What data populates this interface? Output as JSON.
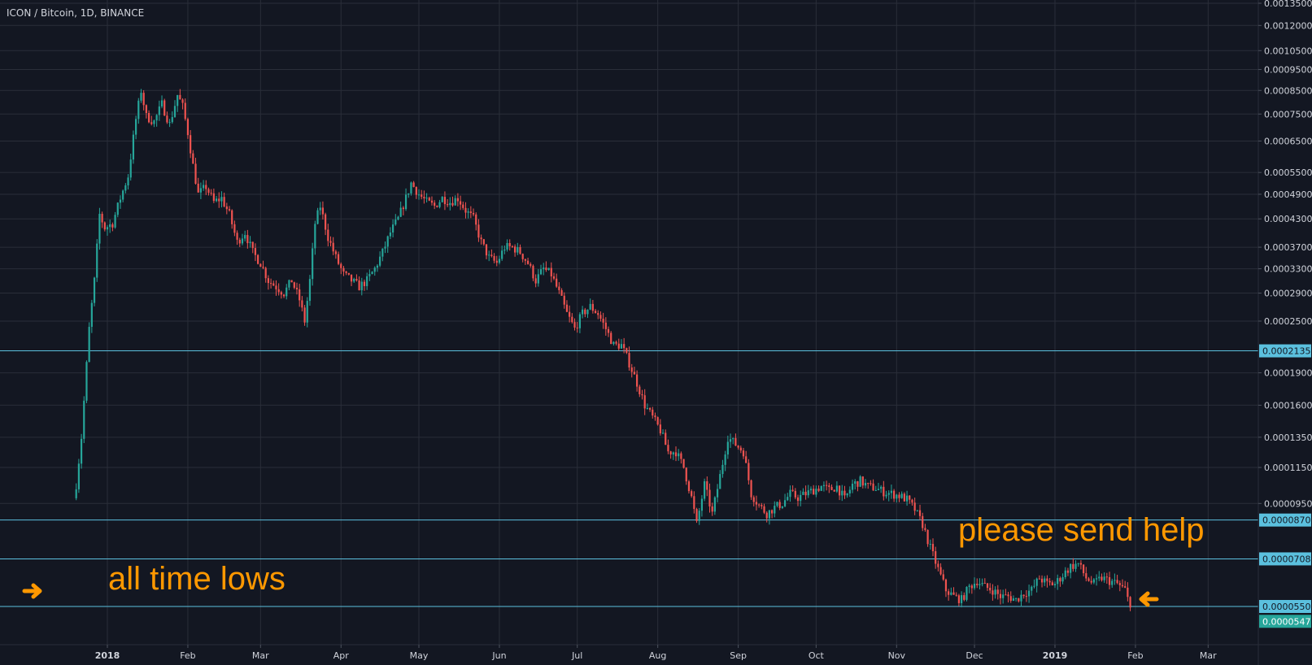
{
  "header": {
    "title": "ICON / Bitcoin, 1D, BINANCE"
  },
  "annotations": {
    "left_text": "all time lows",
    "right_text": "please send help",
    "arrow_color": "#ff9800"
  },
  "colors": {
    "background": "#131722",
    "grid": "#2a2e39",
    "up": "#26a69a",
    "down": "#ef5350",
    "hline": "#5bc0de",
    "axis_text": "#d1d4dc",
    "annotation": "#ff9800"
  },
  "chart_data": {
    "type": "candlestick",
    "symbol": "ICON / Bitcoin",
    "interval": "1D",
    "exchange": "BINANCE",
    "scale": "log",
    "y_ticks": [
      "0.0013500",
      "0.0012000",
      "0.0010500",
      "0.0009500",
      "0.0008500",
      "0.0007500",
      "0.0006500",
      "0.0005500",
      "0.0004900",
      "0.0004300",
      "0.0003700",
      "0.0003300",
      "0.0002900",
      "0.0002500",
      "0.0001900",
      "0.0001600",
      "0.0001350",
      "0.0001150",
      "0.0000950"
    ],
    "x_ticks": [
      {
        "label": "2018",
        "date": "2018-01-01",
        "bold": true
      },
      {
        "label": "Feb",
        "date": "2018-02-01",
        "bold": false
      },
      {
        "label": "Mar",
        "date": "2018-03-01",
        "bold": false
      },
      {
        "label": "Apr",
        "date": "2018-04-01",
        "bold": false
      },
      {
        "label": "May",
        "date": "2018-05-01",
        "bold": false
      },
      {
        "label": "Jun",
        "date": "2018-06-01",
        "bold": false
      },
      {
        "label": "Jul",
        "date": "2018-07-01",
        "bold": false
      },
      {
        "label": "Aug",
        "date": "2018-08-01",
        "bold": false
      },
      {
        "label": "Sep",
        "date": "2018-09-01",
        "bold": false
      },
      {
        "label": "Oct",
        "date": "2018-10-01",
        "bold": false
      },
      {
        "label": "Nov",
        "date": "2018-11-01",
        "bold": false
      },
      {
        "label": "Dec",
        "date": "2018-12-01",
        "bold": false
      },
      {
        "label": "2019",
        "date": "2019-01-01",
        "bold": true
      },
      {
        "label": "Feb",
        "date": "2019-02-01",
        "bold": false
      },
      {
        "label": "Mar",
        "date": "2019-03-01",
        "bold": false
      }
    ],
    "horizontal_lines": [
      {
        "label": "0.0002135",
        "value": 0.0002135
      },
      {
        "label": "0.0000870",
        "value": 8.7e-05
      },
      {
        "label": "0.0000708",
        "value": 7.08e-05
      },
      {
        "label": "0.0000550",
        "value": 5.5e-05
      }
    ],
    "last_price": {
      "label": "0.0000547",
      "value": 5.47e-05
    },
    "series": [
      {
        "points": [
          {
            "date": "2017-12-20",
            "close": 0.000105
          },
          {
            "date": "2017-12-22",
            "close": 0.000135
          },
          {
            "date": "2017-12-25",
            "close": 0.00024
          },
          {
            "date": "2017-12-27",
            "close": 0.00031
          },
          {
            "date": "2017-12-29",
            "close": 0.00044
          },
          {
            "date": "2017-12-31",
            "close": 0.00041
          },
          {
            "date": "2018-01-03",
            "close": 0.00042
          },
          {
            "date": "2018-01-06",
            "close": 0.00048
          },
          {
            "date": "2018-01-09",
            "close": 0.00054
          },
          {
            "date": "2018-01-12",
            "close": 0.00073
          },
          {
            "date": "2018-01-14",
            "close": 0.00085
          },
          {
            "date": "2018-01-16",
            "close": 0.00074
          },
          {
            "date": "2018-01-19",
            "close": 0.00072
          },
          {
            "date": "2018-01-22",
            "close": 0.00079
          },
          {
            "date": "2018-01-25",
            "close": 0.00071
          },
          {
            "date": "2018-01-28",
            "close": 0.00083
          },
          {
            "date": "2018-01-30",
            "close": 0.00078
          },
          {
            "date": "2018-02-01",
            "close": 0.00068
          },
          {
            "date": "2018-02-03",
            "close": 0.00057
          },
          {
            "date": "2018-02-05",
            "close": 0.00049
          },
          {
            "date": "2018-02-08",
            "close": 0.00051
          },
          {
            "date": "2018-02-11",
            "close": 0.00047
          },
          {
            "date": "2018-02-14",
            "close": 0.00048
          },
          {
            "date": "2018-02-17",
            "close": 0.00044
          },
          {
            "date": "2018-02-20",
            "close": 0.00038
          },
          {
            "date": "2018-02-23",
            "close": 0.0004
          },
          {
            "date": "2018-02-26",
            "close": 0.00036
          },
          {
            "date": "2018-03-01",
            "close": 0.00034
          },
          {
            "date": "2018-03-04",
            "close": 0.00031
          },
          {
            "date": "2018-03-07",
            "close": 0.0003
          },
          {
            "date": "2018-03-10",
            "close": 0.00029
          },
          {
            "date": "2018-03-13",
            "close": 0.00031
          },
          {
            "date": "2018-03-16",
            "close": 0.00028
          },
          {
            "date": "2018-03-18",
            "close": 0.00025
          },
          {
            "date": "2018-03-20",
            "close": 0.00031
          },
          {
            "date": "2018-03-22",
            "close": 0.00042
          },
          {
            "date": "2018-03-24",
            "close": 0.00046
          },
          {
            "date": "2018-03-27",
            "close": 0.00039
          },
          {
            "date": "2018-03-30",
            "close": 0.00035
          },
          {
            "date": "2018-04-02",
            "close": 0.00032
          },
          {
            "date": "2018-04-05",
            "close": 0.00031
          },
          {
            "date": "2018-04-08",
            "close": 0.0003
          },
          {
            "date": "2018-04-11",
            "close": 0.00031
          },
          {
            "date": "2018-04-14",
            "close": 0.00033
          },
          {
            "date": "2018-04-17",
            "close": 0.00036
          },
          {
            "date": "2018-04-20",
            "close": 0.0004
          },
          {
            "date": "2018-04-23",
            "close": 0.00043
          },
          {
            "date": "2018-04-26",
            "close": 0.00048
          },
          {
            "date": "2018-04-28",
            "close": 0.00052
          },
          {
            "date": "2018-05-01",
            "close": 0.00049
          },
          {
            "date": "2018-05-04",
            "close": 0.00047
          },
          {
            "date": "2018-05-07",
            "close": 0.00046
          },
          {
            "date": "2018-05-10",
            "close": 0.00048
          },
          {
            "date": "2018-05-13",
            "close": 0.00047
          },
          {
            "date": "2018-05-16",
            "close": 0.00048
          },
          {
            "date": "2018-05-19",
            "close": 0.00045
          },
          {
            "date": "2018-05-22",
            "close": 0.00043
          },
          {
            "date": "2018-05-25",
            "close": 0.00038
          },
          {
            "date": "2018-05-28",
            "close": 0.00035
          },
          {
            "date": "2018-05-31",
            "close": 0.00034
          },
          {
            "date": "2018-06-03",
            "close": 0.00037
          },
          {
            "date": "2018-06-06",
            "close": 0.00037
          },
          {
            "date": "2018-06-09",
            "close": 0.00036
          },
          {
            "date": "2018-06-12",
            "close": 0.00034
          },
          {
            "date": "2018-06-15",
            "close": 0.00031
          },
          {
            "date": "2018-06-18",
            "close": 0.00033
          },
          {
            "date": "2018-06-21",
            "close": 0.00032
          },
          {
            "date": "2018-06-24",
            "close": 0.00029
          },
          {
            "date": "2018-06-27",
            "close": 0.00026
          },
          {
            "date": "2018-06-30",
            "close": 0.00024
          },
          {
            "date": "2018-07-03",
            "close": 0.00026
          },
          {
            "date": "2018-07-06",
            "close": 0.00027
          },
          {
            "date": "2018-07-09",
            "close": 0.00026
          },
          {
            "date": "2018-07-12",
            "close": 0.00024
          },
          {
            "date": "2018-07-15",
            "close": 0.00022
          },
          {
            "date": "2018-07-18",
            "close": 0.00022
          },
          {
            "date": "2018-07-21",
            "close": 0.0002
          },
          {
            "date": "2018-07-24",
            "close": 0.00018
          },
          {
            "date": "2018-07-27",
            "close": 0.00016
          },
          {
            "date": "2018-07-30",
            "close": 0.00015
          },
          {
            "date": "2018-08-02",
            "close": 0.00014
          },
          {
            "date": "2018-08-05",
            "close": 0.000125
          },
          {
            "date": "2018-08-08",
            "close": 0.000125
          },
          {
            "date": "2018-08-11",
            "close": 0.000115
          },
          {
            "date": "2018-08-14",
            "close": 9.8e-05
          },
          {
            "date": "2018-08-16",
            "close": 8.5e-05
          },
          {
            "date": "2018-08-19",
            "close": 0.000105
          },
          {
            "date": "2018-08-22",
            "close": 9e-05
          },
          {
            "date": "2018-08-25",
            "close": 0.00011
          },
          {
            "date": "2018-08-28",
            "close": 0.000135
          },
          {
            "date": "2018-08-31",
            "close": 0.00013
          },
          {
            "date": "2018-09-03",
            "close": 0.000125
          },
          {
            "date": "2018-09-06",
            "close": 0.0001
          },
          {
            "date": "2018-09-09",
            "close": 9.4e-05
          },
          {
            "date": "2018-09-12",
            "close": 9e-05
          },
          {
            "date": "2018-09-15",
            "close": 9.3e-05
          },
          {
            "date": "2018-09-18",
            "close": 9.5e-05
          },
          {
            "date": "2018-09-21",
            "close": 0.0001
          },
          {
            "date": "2018-09-24",
            "close": 9.8e-05
          },
          {
            "date": "2018-09-27",
            "close": 0.0001
          },
          {
            "date": "2018-09-30",
            "close": 0.000102
          },
          {
            "date": "2018-10-03",
            "close": 0.000104
          },
          {
            "date": "2018-10-06",
            "close": 0.000102
          },
          {
            "date": "2018-10-09",
            "close": 0.000104
          },
          {
            "date": "2018-10-12",
            "close": 9.7e-05
          },
          {
            "date": "2018-10-15",
            "close": 0.000105
          },
          {
            "date": "2018-10-18",
            "close": 0.000107
          },
          {
            "date": "2018-10-21",
            "close": 0.000104
          },
          {
            "date": "2018-10-24",
            "close": 0.000103
          },
          {
            "date": "2018-10-27",
            "close": 0.000101
          },
          {
            "date": "2018-10-30",
            "close": 0.0001
          },
          {
            "date": "2018-11-02",
            "close": 9.9e-05
          },
          {
            "date": "2018-11-05",
            "close": 9.7e-05
          },
          {
            "date": "2018-11-08",
            "close": 9.2e-05
          },
          {
            "date": "2018-11-11",
            "close": 8.5e-05
          },
          {
            "date": "2018-11-14",
            "close": 7.5e-05
          },
          {
            "date": "2018-11-17",
            "close": 6.7e-05
          },
          {
            "date": "2018-11-20",
            "close": 6e-05
          },
          {
            "date": "2018-11-23",
            "close": 5.8e-05
          },
          {
            "date": "2018-11-26",
            "close": 5.7e-05
          },
          {
            "date": "2018-11-29",
            "close": 6.1e-05
          },
          {
            "date": "2018-12-02",
            "close": 6.3e-05
          },
          {
            "date": "2018-12-05",
            "close": 6.1e-05
          },
          {
            "date": "2018-12-08",
            "close": 6e-05
          },
          {
            "date": "2018-12-11",
            "close": 5.8e-05
          },
          {
            "date": "2018-12-14",
            "close": 5.8e-05
          },
          {
            "date": "2018-12-17",
            "close": 5.7e-05
          },
          {
            "date": "2018-12-20",
            "close": 5.9e-05
          },
          {
            "date": "2018-12-23",
            "close": 6e-05
          },
          {
            "date": "2018-12-26",
            "close": 6.4e-05
          },
          {
            "date": "2018-12-29",
            "close": 6.2e-05
          },
          {
            "date": "2019-01-01",
            "close": 6.2e-05
          },
          {
            "date": "2019-01-04",
            "close": 6.5e-05
          },
          {
            "date": "2019-01-07",
            "close": 6.8e-05
          },
          {
            "date": "2019-01-10",
            "close": 6.9e-05
          },
          {
            "date": "2019-01-13",
            "close": 6.4e-05
          },
          {
            "date": "2019-01-16",
            "close": 6.2e-05
          },
          {
            "date": "2019-01-19",
            "close": 6.4e-05
          },
          {
            "date": "2019-01-22",
            "close": 6.3e-05
          },
          {
            "date": "2019-01-25",
            "close": 6.2e-05
          },
          {
            "date": "2019-01-28",
            "close": 6e-05
          },
          {
            "date": "2019-01-30",
            "close": 5.47e-05
          }
        ]
      }
    ]
  }
}
